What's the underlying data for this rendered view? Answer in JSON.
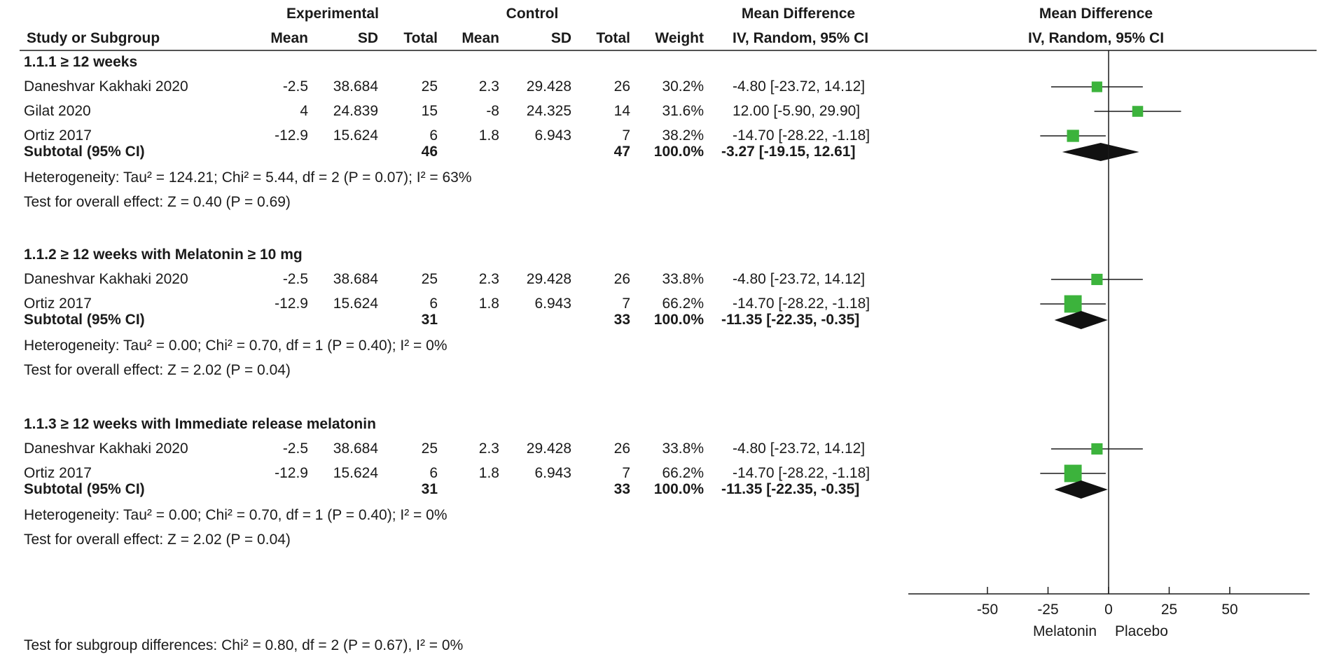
{
  "header": {
    "experimental_label": "Experimental",
    "control_label": "Control",
    "md_label": "Mean Difference",
    "plot_md_label": "Mean Difference",
    "study_col": "Study or Subgroup",
    "mean_col": "Mean",
    "sd_col": "SD",
    "total_col": "Total",
    "ctrl_mean_col": "Mean",
    "ctrl_sd_col": "SD",
    "ctrl_total_col": "Total",
    "weight_col": "Weight",
    "method_col": "IV, Random, 95% CI",
    "plot_method_col": "IV, Random, 95% CI"
  },
  "chart_data": {
    "type": "forest",
    "x_ticks": [
      "-50",
      "-25",
      "0",
      "25",
      "50"
    ],
    "x_tick_values": [
      -50,
      -25,
      0,
      25,
      50
    ],
    "favours_left": "Melatonin",
    "favours_right": "Placebo",
    "subgroup_test": "Test for subgroup differences: Chi² = 0.80, df = 2 (P = 0.67), I² = 0%",
    "colors": {
      "marker": "#3cb33c",
      "diamond": "#111111",
      "line": "#1a1a1a"
    },
    "subgroups": [
      {
        "title": "1.1.1 ≥ 12 weeks",
        "studies": [
          {
            "name": "Daneshvar Kakhaki 2020",
            "e_mean": "-2.5",
            "e_sd": "38.684",
            "e_total": "25",
            "c_mean": "2.3",
            "c_sd": "29.428",
            "c_total": "26",
            "weight": "30.2%",
            "ci_text": "-4.80 [-23.72, 14.12]",
            "md": -4.8,
            "lo": -23.72,
            "hi": 14.12,
            "w": 30.2
          },
          {
            "name": "Gilat 2020",
            "e_mean": "4",
            "e_sd": "24.839",
            "e_total": "15",
            "c_mean": "-8",
            "c_sd": "24.325",
            "c_total": "14",
            "weight": "31.6%",
            "ci_text": "12.00 [-5.90, 29.90]",
            "md": 12.0,
            "lo": -5.9,
            "hi": 29.9,
            "w": 31.6
          },
          {
            "name": "Ortiz 2017",
            "e_mean": "-12.9",
            "e_sd": "15.624",
            "e_total": "6",
            "c_mean": "1.8",
            "c_sd": "6.943",
            "c_total": "7",
            "weight": "38.2%",
            "ci_text": "-14.70 [-28.22, -1.18]",
            "md": -14.7,
            "lo": -28.22,
            "hi": -1.18,
            "w": 38.2
          }
        ],
        "subtotal": {
          "label": "Subtotal (95% CI)",
          "e_total": "46",
          "c_total": "47",
          "weight": "100.0%",
          "ci_text": "-3.27 [-19.15, 12.61]",
          "md": -3.27,
          "lo": -19.15,
          "hi": 12.61
        },
        "heterogeneity": "Heterogeneity: Tau² = 124.21; Chi² = 5.44, df = 2 (P = 0.07); I² = 63%",
        "overall": "Test for overall effect: Z = 0.40 (P = 0.69)"
      },
      {
        "title": "1.1.2 ≥ 12 weeks with Melatonin ≥ 10 mg",
        "studies": [
          {
            "name": "Daneshvar Kakhaki 2020",
            "e_mean": "-2.5",
            "e_sd": "38.684",
            "e_total": "25",
            "c_mean": "2.3",
            "c_sd": "29.428",
            "c_total": "26",
            "weight": "33.8%",
            "ci_text": "-4.80 [-23.72, 14.12]",
            "md": -4.8,
            "lo": -23.72,
            "hi": 14.12,
            "w": 33.8
          },
          {
            "name": "Ortiz 2017",
            "e_mean": "-12.9",
            "e_sd": "15.624",
            "e_total": "6",
            "c_mean": "1.8",
            "c_sd": "6.943",
            "c_total": "7",
            "weight": "66.2%",
            "ci_text": "-14.70 [-28.22, -1.18]",
            "md": -14.7,
            "lo": -28.22,
            "hi": -1.18,
            "w": 66.2
          }
        ],
        "subtotal": {
          "label": "Subtotal (95% CI)",
          "e_total": "31",
          "c_total": "33",
          "weight": "100.0%",
          "ci_text": "-11.35 [-22.35, -0.35]",
          "md": -11.35,
          "lo": -22.35,
          "hi": -0.35
        },
        "heterogeneity": "Heterogeneity: Tau² = 0.00; Chi² = 0.70, df = 1 (P = 0.40); I² = 0%",
        "overall": "Test for overall effect: Z = 2.02 (P = 0.04)"
      },
      {
        "title": "1.1.3 ≥ 12 weeks with Immediate release melatonin",
        "studies": [
          {
            "name": "Daneshvar Kakhaki 2020",
            "e_mean": "-2.5",
            "e_sd": "38.684",
            "e_total": "25",
            "c_mean": "2.3",
            "c_sd": "29.428",
            "c_total": "26",
            "weight": "33.8%",
            "ci_text": "-4.80 [-23.72, 14.12]",
            "md": -4.8,
            "lo": -23.72,
            "hi": 14.12,
            "w": 33.8
          },
          {
            "name": "Ortiz 2017",
            "e_mean": "-12.9",
            "e_sd": "15.624",
            "e_total": "6",
            "c_mean": "1.8",
            "c_sd": "6.943",
            "c_total": "7",
            "weight": "66.2%",
            "ci_text": "-14.70 [-28.22, -1.18]",
            "md": -14.7,
            "lo": -28.22,
            "hi": -1.18,
            "w": 66.2
          }
        ],
        "subtotal": {
          "label": "Subtotal (95% CI)",
          "e_total": "31",
          "c_total": "33",
          "weight": "100.0%",
          "ci_text": "-11.35 [-22.35, -0.35]",
          "md": -11.35,
          "lo": -22.35,
          "hi": -0.35
        },
        "heterogeneity": "Heterogeneity: Tau² = 0.00; Chi² = 0.70, df = 1 (P = 0.40); I² = 0%",
        "overall": "Test for overall effect: Z = 2.02 (P = 0.04)"
      }
    ]
  }
}
